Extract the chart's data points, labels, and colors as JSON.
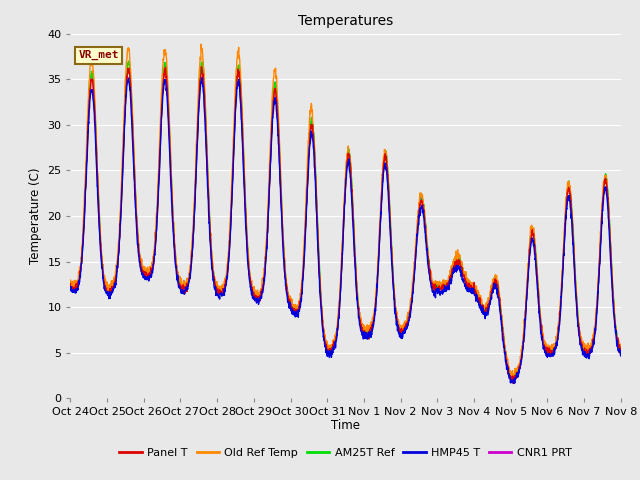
{
  "title": "Temperatures",
  "xlabel": "Time",
  "ylabel": "Temperature (C)",
  "ylim": [
    0,
    40
  ],
  "bg_color": "#e8e8e8",
  "fig_color": "#e8e8e8",
  "annotation_text": "VR_met",
  "tick_labels": [
    "Oct 24",
    "Oct 25",
    "Oct 26",
    "Oct 27",
    "Oct 28",
    "Oct 29",
    "Oct 30",
    "Oct 31",
    "Nov 1",
    "Nov 2",
    "Nov 3",
    "Nov 4",
    "Nov 5",
    "Nov 6",
    "Nov 7",
    "Nov 8"
  ],
  "series_order": [
    "CNR1 PRT",
    "AM25T Ref",
    "Old Ref Temp",
    "Panel T",
    "HMP45 T"
  ],
  "series": {
    "Panel T": {
      "color": "#dd0000",
      "lw": 1.0
    },
    "Old Ref Temp": {
      "color": "#ff8800",
      "lw": 1.0
    },
    "AM25T Ref": {
      "color": "#00dd00",
      "lw": 1.0
    },
    "HMP45 T": {
      "color": "#0000dd",
      "lw": 1.0
    },
    "CNR1 PRT": {
      "color": "#cc00cc",
      "lw": 1.0
    }
  },
  "grid_color": "#ffffff",
  "yticks": [
    0,
    5,
    10,
    15,
    20,
    25,
    30,
    35,
    40
  ],
  "ppd": 144,
  "n_days": 15
}
